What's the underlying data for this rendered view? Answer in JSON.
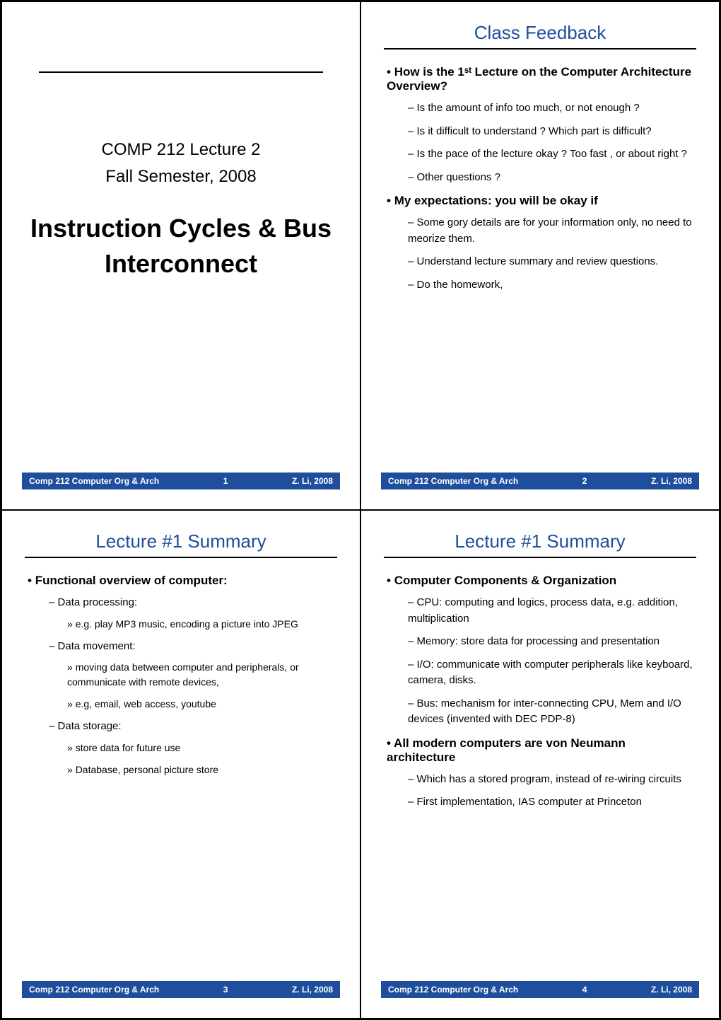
{
  "slide1": {
    "subtitle_line1": "COMP 212 Lecture 2",
    "subtitle_line2": "Fall Semester, 2008",
    "maintitle_line1": "Instruction Cycles & Bus",
    "maintitle_line2": "Interconnect",
    "footer_left": "Comp 212  Computer Org & Arch",
    "footer_mid": "1",
    "footer_right": "Z. Li, 2008"
  },
  "slide2": {
    "title": "Class Feedback",
    "b1": "How is the 1ˢᵗ Lecture on the Computer Architecture Overview?",
    "b1_1": "Is the amount of info too much, or not enough ?",
    "b1_2": "Is it difficult to understand ?  Which part is difficult?",
    "b1_3": "Is the pace of the lecture okay ? Too fast , or about right ?",
    "b1_4": "Other questions ?",
    "b2": "My expectations: you will be okay if",
    "b2_1": "Some gory details are for your information only, no need to meorize them.",
    "b2_2": "Understand lecture summary and review questions.",
    "b2_3": "Do the homework,",
    "footer_left": "Comp 212  Computer Org & Arch",
    "footer_mid": "2",
    "footer_right": "Z. Li, 2008"
  },
  "slide3": {
    "title": "Lecture #1 Summary",
    "b1": "Functional overview of computer:",
    "b1_1": "Data processing:",
    "b1_1_1": "e.g. play MP3 music, encoding a picture into JPEG",
    "b1_2": "Data movement:",
    "b1_2_1": "moving data between computer and peripherals, or communicate with remote devices,",
    "b1_2_2": "e.g, email, web access, youtube",
    "b1_3": "Data storage:",
    "b1_3_1": "store data for future use",
    "b1_3_2": "Database, personal picture store",
    "footer_left": "Comp 212  Computer Org & Arch",
    "footer_mid": "3",
    "footer_right": "Z. Li, 2008"
  },
  "slide4": {
    "title": "Lecture #1 Summary",
    "b1": "Computer Components & Organization",
    "b1_1": "CPU: computing and logics, process data, e.g. addition, multiplication",
    "b1_2": "Memory: store data for processing and presentation",
    "b1_3": "I/O: communicate with computer peripherals like keyboard, camera, disks.",
    "b1_4": "Bus: mechanism for inter-connecting CPU, Mem and I/O devices (invented with DEC PDP-8)",
    "b2": "All modern computers are von Neumann architecture",
    "b2_1": "Which has a stored program, instead of re-wiring circuits",
    "b2_2": "First implementation, IAS computer at Princeton",
    "footer_left": "Comp 212  Computer Org & Arch",
    "footer_mid": "4",
    "footer_right": "Z. Li, 2008"
  }
}
